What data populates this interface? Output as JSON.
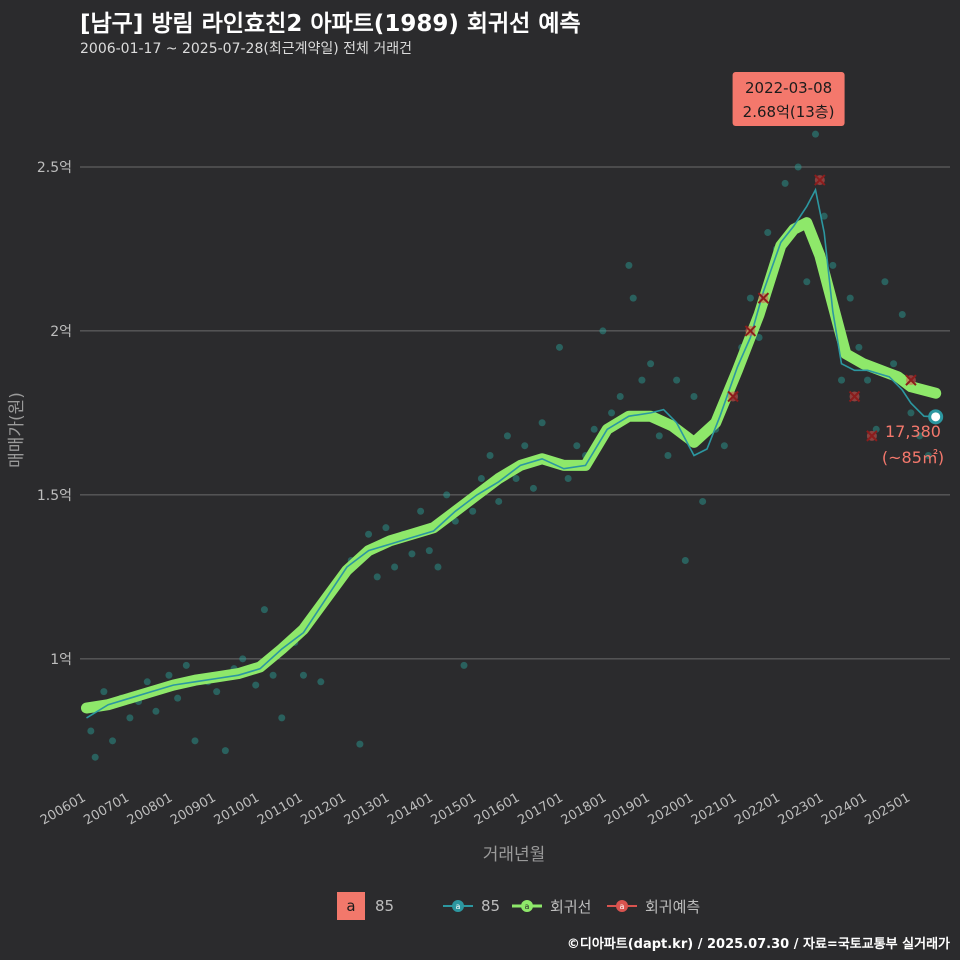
{
  "header": {
    "title": "[남구] 방림 라인효친2 아파트(1989) 회귀선 예측",
    "subtitle": "2006-01-17 ~ 2025-07-28(최근계약일) 전체 거래건"
  },
  "footer": {
    "credit": "©디아파트(dapt.kr) / 2025.07.30 / 자료=국토교통부 실거래가"
  },
  "colors": {
    "background": "#2b2b2d",
    "scatter": "#2aa39b",
    "series_85": "#2c97a0",
    "regression": "#8ee86a",
    "prediction": "#d9534f",
    "callout": "#f4786c",
    "gridline": "#6b6b6b"
  },
  "annotations": {
    "max_callout": {
      "date": "2022-03-08",
      "value_text": "2.68억(13층)"
    },
    "last_label": {
      "value": "17,380",
      "area": "(~85㎡)"
    }
  },
  "legend": {
    "area_key": "a",
    "area_label": "85",
    "items": [
      {
        "label": "85",
        "color": "#2c97a0"
      },
      {
        "label": "회귀선",
        "color": "#8ee86a"
      },
      {
        "label": "회귀예측",
        "color": "#d9534f"
      }
    ]
  },
  "chart_data": {
    "type": "line",
    "xlabel": "거래년월",
    "ylabel": "매매가(원)",
    "x_tick_labels": [
      "200601",
      "200701",
      "200801",
      "200901",
      "201001",
      "201101",
      "201201",
      "201301",
      "201401",
      "201501",
      "201601",
      "201701",
      "201801",
      "201901",
      "202001",
      "202101",
      "202201",
      "202301",
      "202401",
      "202501"
    ],
    "y_ticks": [
      1.0,
      1.5,
      2.0,
      2.5
    ],
    "y_tick_labels": [
      "1억",
      "1.5억",
      "2억",
      "2.5억"
    ],
    "ylim": [
      0.6,
      2.75
    ],
    "xlim": [
      2005.85,
      2025.9
    ],
    "series": [
      {
        "name": "85",
        "type": "line",
        "points": [
          [
            2006.0,
            0.82
          ],
          [
            2006.5,
            0.86
          ],
          [
            2007.0,
            0.88
          ],
          [
            2007.5,
            0.9
          ],
          [
            2008.0,
            0.92
          ],
          [
            2008.5,
            0.93
          ],
          [
            2009.0,
            0.94
          ],
          [
            2009.5,
            0.95
          ],
          [
            2010.0,
            0.97
          ],
          [
            2010.5,
            1.03
          ],
          [
            2011.0,
            1.08
          ],
          [
            2011.5,
            1.18
          ],
          [
            2012.0,
            1.28
          ],
          [
            2012.5,
            1.33
          ],
          [
            2013.0,
            1.35
          ],
          [
            2013.5,
            1.37
          ],
          [
            2014.0,
            1.39
          ],
          [
            2014.5,
            1.45
          ],
          [
            2015.0,
            1.5
          ],
          [
            2015.5,
            1.54
          ],
          [
            2016.0,
            1.59
          ],
          [
            2016.5,
            1.61
          ],
          [
            2017.0,
            1.58
          ],
          [
            2017.5,
            1.59
          ],
          [
            2018.0,
            1.7
          ],
          [
            2018.5,
            1.74
          ],
          [
            2019.0,
            1.75
          ],
          [
            2019.3,
            1.76
          ],
          [
            2019.6,
            1.72
          ],
          [
            2020.0,
            1.62
          ],
          [
            2020.3,
            1.64
          ],
          [
            2020.6,
            1.74
          ],
          [
            2021.0,
            1.89
          ],
          [
            2021.3,
            1.98
          ],
          [
            2021.6,
            2.12
          ],
          [
            2022.0,
            2.27
          ],
          [
            2022.3,
            2.32
          ],
          [
            2022.6,
            2.38
          ],
          [
            2022.8,
            2.43
          ],
          [
            2023.0,
            2.3
          ],
          [
            2023.2,
            2.06
          ],
          [
            2023.4,
            1.9
          ],
          [
            2023.7,
            1.88
          ],
          [
            2024.0,
            1.88
          ],
          [
            2024.5,
            1.86
          ],
          [
            2024.8,
            1.82
          ],
          [
            2025.0,
            1.78
          ],
          [
            2025.3,
            1.74
          ],
          [
            2025.57,
            1.738
          ]
        ]
      },
      {
        "name": "회귀선",
        "type": "regression",
        "points": [
          [
            2006.0,
            0.85
          ],
          [
            2006.5,
            0.86
          ],
          [
            2007.0,
            0.88
          ],
          [
            2007.5,
            0.9
          ],
          [
            2008.0,
            0.92
          ],
          [
            2008.5,
            0.935
          ],
          [
            2009.0,
            0.945
          ],
          [
            2009.5,
            0.955
          ],
          [
            2010.0,
            0.975
          ],
          [
            2010.5,
            1.03
          ],
          [
            2011.0,
            1.09
          ],
          [
            2011.5,
            1.18
          ],
          [
            2012.0,
            1.27
          ],
          [
            2012.5,
            1.33
          ],
          [
            2013.0,
            1.36
          ],
          [
            2013.5,
            1.38
          ],
          [
            2014.0,
            1.4
          ],
          [
            2014.5,
            1.45
          ],
          [
            2015.0,
            1.5
          ],
          [
            2015.5,
            1.55
          ],
          [
            2016.0,
            1.59
          ],
          [
            2016.5,
            1.61
          ],
          [
            2017.0,
            1.59
          ],
          [
            2017.5,
            1.59
          ],
          [
            2018.0,
            1.7
          ],
          [
            2018.5,
            1.74
          ],
          [
            2019.0,
            1.74
          ],
          [
            2019.5,
            1.71
          ],
          [
            2020.0,
            1.66
          ],
          [
            2020.5,
            1.72
          ],
          [
            2021.0,
            1.88
          ],
          [
            2021.5,
            2.05
          ],
          [
            2022.0,
            2.26
          ],
          [
            2022.3,
            2.31
          ],
          [
            2022.6,
            2.33
          ],
          [
            2022.9,
            2.23
          ],
          [
            2023.2,
            2.08
          ],
          [
            2023.5,
            1.93
          ],
          [
            2023.9,
            1.9
          ],
          [
            2024.3,
            1.88
          ],
          [
            2024.7,
            1.86
          ],
          [
            2025.0,
            1.83
          ],
          [
            2025.57,
            1.81
          ]
        ]
      },
      {
        "name": "회귀예측",
        "type": "prediction",
        "points": [
          [
            2022.9,
            2.46
          ],
          [
            2021.6,
            2.1
          ],
          [
            2021.3,
            2.0
          ],
          [
            2020.9,
            1.8
          ],
          [
            2023.7,
            1.8
          ],
          [
            2024.1,
            1.68
          ],
          [
            2025.0,
            1.85
          ]
        ]
      },
      {
        "name": "거래",
        "type": "scatter",
        "points": [
          [
            2006.1,
            0.78
          ],
          [
            2006.2,
            0.7
          ],
          [
            2006.3,
            0.85
          ],
          [
            2006.4,
            0.9
          ],
          [
            2006.6,
            0.75
          ],
          [
            2006.8,
            0.88
          ],
          [
            2007.0,
            0.82
          ],
          [
            2007.2,
            0.87
          ],
          [
            2007.4,
            0.93
          ],
          [
            2007.6,
            0.84
          ],
          [
            2007.9,
            0.95
          ],
          [
            2008.1,
            0.88
          ],
          [
            2008.3,
            0.98
          ],
          [
            2008.5,
            0.75
          ],
          [
            2008.8,
            0.93
          ],
          [
            2009.0,
            0.9
          ],
          [
            2009.2,
            0.72
          ],
          [
            2009.4,
            0.97
          ],
          [
            2009.6,
            1.0
          ],
          [
            2009.9,
            0.92
          ],
          [
            2010.1,
            1.15
          ],
          [
            2010.3,
            0.95
          ],
          [
            2010.5,
            0.82
          ],
          [
            2010.8,
            1.05
          ],
          [
            2011.0,
            0.95
          ],
          [
            2011.2,
            1.12
          ],
          [
            2011.4,
            0.93
          ],
          [
            2011.6,
            1.2
          ],
          [
            2011.9,
            1.25
          ],
          [
            2012.1,
            1.3
          ],
          [
            2012.3,
            0.74
          ],
          [
            2012.5,
            1.38
          ],
          [
            2012.7,
            1.25
          ],
          [
            2012.9,
            1.4
          ],
          [
            2013.1,
            1.28
          ],
          [
            2013.3,
            1.38
          ],
          [
            2013.5,
            1.32
          ],
          [
            2013.7,
            1.45
          ],
          [
            2013.9,
            1.33
          ],
          [
            2014.1,
            1.28
          ],
          [
            2014.3,
            1.5
          ],
          [
            2014.5,
            1.42
          ],
          [
            2014.7,
            0.98
          ],
          [
            2014.9,
            1.45
          ],
          [
            2015.1,
            1.55
          ],
          [
            2015.3,
            1.62
          ],
          [
            2015.5,
            1.48
          ],
          [
            2015.7,
            1.68
          ],
          [
            2015.9,
            1.55
          ],
          [
            2016.1,
            1.65
          ],
          [
            2016.3,
            1.52
          ],
          [
            2016.5,
            1.72
          ],
          [
            2016.7,
            1.6
          ],
          [
            2016.9,
            1.95
          ],
          [
            2017.1,
            1.55
          ],
          [
            2017.3,
            1.65
          ],
          [
            2017.5,
            1.62
          ],
          [
            2017.7,
            1.7
          ],
          [
            2017.9,
            2.0
          ],
          [
            2018.1,
            1.75
          ],
          [
            2018.3,
            1.8
          ],
          [
            2018.5,
            2.2
          ],
          [
            2018.6,
            2.1
          ],
          [
            2018.8,
            1.85
          ],
          [
            2019.0,
            1.9
          ],
          [
            2019.2,
            1.68
          ],
          [
            2019.4,
            1.62
          ],
          [
            2019.6,
            1.85
          ],
          [
            2019.8,
            1.3
          ],
          [
            2020.0,
            1.8
          ],
          [
            2020.2,
            1.48
          ],
          [
            2020.5,
            1.7
          ],
          [
            2020.7,
            1.65
          ],
          [
            2020.9,
            1.85
          ],
          [
            2021.1,
            1.95
          ],
          [
            2021.3,
            2.1
          ],
          [
            2021.5,
            1.98
          ],
          [
            2021.7,
            2.3
          ],
          [
            2021.9,
            2.25
          ],
          [
            2022.1,
            2.45
          ],
          [
            2022.18,
            2.68
          ],
          [
            2022.4,
            2.5
          ],
          [
            2022.6,
            2.15
          ],
          [
            2022.8,
            2.6
          ],
          [
            2023.0,
            2.35
          ],
          [
            2023.2,
            2.2
          ],
          [
            2023.4,
            1.85
          ],
          [
            2023.6,
            2.1
          ],
          [
            2023.8,
            1.95
          ],
          [
            2024.0,
            1.85
          ],
          [
            2024.2,
            1.7
          ],
          [
            2024.4,
            2.15
          ],
          [
            2024.6,
            1.9
          ],
          [
            2024.8,
            2.05
          ],
          [
            2025.0,
            1.75
          ],
          [
            2025.2,
            1.68
          ],
          [
            2025.4,
            1.62
          ]
        ]
      }
    ],
    "last_point": [
      2025.57,
      1.738
    ],
    "max_point": [
      2022.18,
      2.68
    ]
  }
}
